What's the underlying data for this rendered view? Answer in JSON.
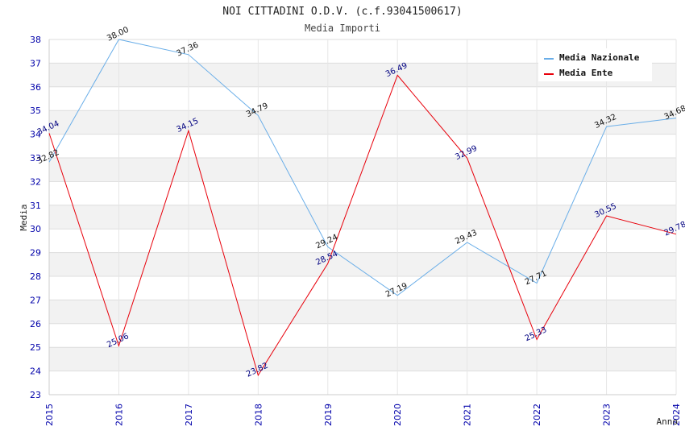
{
  "chart_data": {
    "type": "line",
    "title": "NOI CITTADINI O.D.V. (c.f.93041500617)",
    "subtitle": "Media Importi",
    "xlabel": "Anno",
    "ylabel": "Media",
    "ylim": [
      23,
      38
    ],
    "yticks": [
      "23",
      "24",
      "25",
      "26",
      "27",
      "28",
      "29",
      "30",
      "31",
      "32",
      "33",
      "34",
      "35",
      "36",
      "37",
      "38"
    ],
    "categories": [
      "2015",
      "2016",
      "2017",
      "2018",
      "2019",
      "2020",
      "2021",
      "2022",
      "2023",
      "2024"
    ],
    "legend_position": "top-right",
    "series": [
      {
        "name": "Media Nazionale",
        "color": "#6aaee8",
        "label_color": "#111111",
        "values": [
          32.82,
          38.0,
          37.36,
          34.79,
          29.24,
          27.19,
          29.43,
          27.71,
          34.32,
          34.68
        ],
        "labels": [
          "32.82",
          "38.00",
          "37.36",
          "34.79",
          "29.24",
          "27.19",
          "29.43",
          "27.71",
          "34.32",
          "34.68"
        ]
      },
      {
        "name": "Media Ente",
        "color": "#e8000b",
        "label_color": "#000080",
        "values": [
          34.04,
          25.06,
          34.15,
          23.82,
          28.54,
          36.49,
          32.99,
          25.33,
          30.55,
          29.78
        ],
        "labels": [
          "34.04",
          "25.06",
          "34.15",
          "23.82",
          "28.54",
          "36.49",
          "32.99",
          "25.33",
          "30.55",
          "29.78"
        ]
      }
    ]
  }
}
